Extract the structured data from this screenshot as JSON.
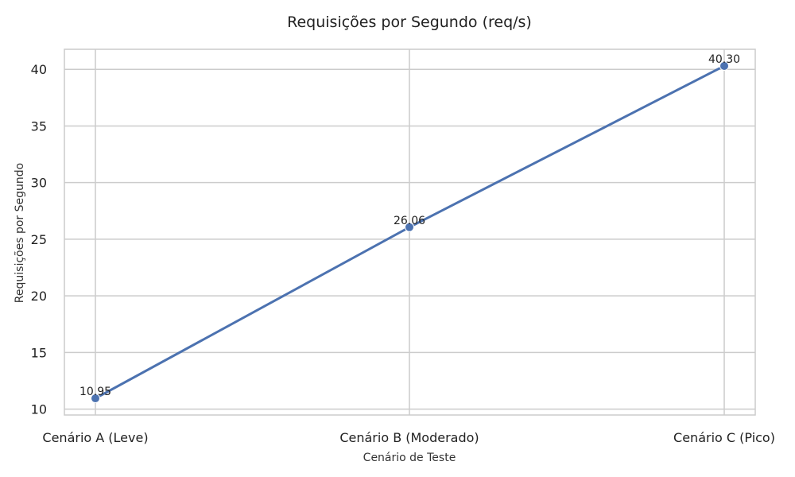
{
  "chart_data": {
    "type": "line",
    "title": "Requisições por Segundo (req/s)",
    "xlabel": "Cenário de Teste",
    "ylabel": "Requisições por Segundo",
    "categories": [
      "Cenário A (Leve)",
      "Cenário B (Moderado)",
      "Cenário C (Pico)"
    ],
    "series": [
      {
        "values": [
          10.95,
          26.06,
          40.3
        ],
        "labels": [
          "10.95",
          "26.06",
          "40.30"
        ]
      }
    ],
    "ylim": [
      9.48,
      41.77
    ],
    "yticks": [
      10,
      15,
      20,
      25,
      30,
      35,
      40
    ],
    "grid": true,
    "legend": "none",
    "colors": {
      "line": "#4c72b0",
      "grid": "#cccccc",
      "frame": "#cccccc"
    }
  }
}
